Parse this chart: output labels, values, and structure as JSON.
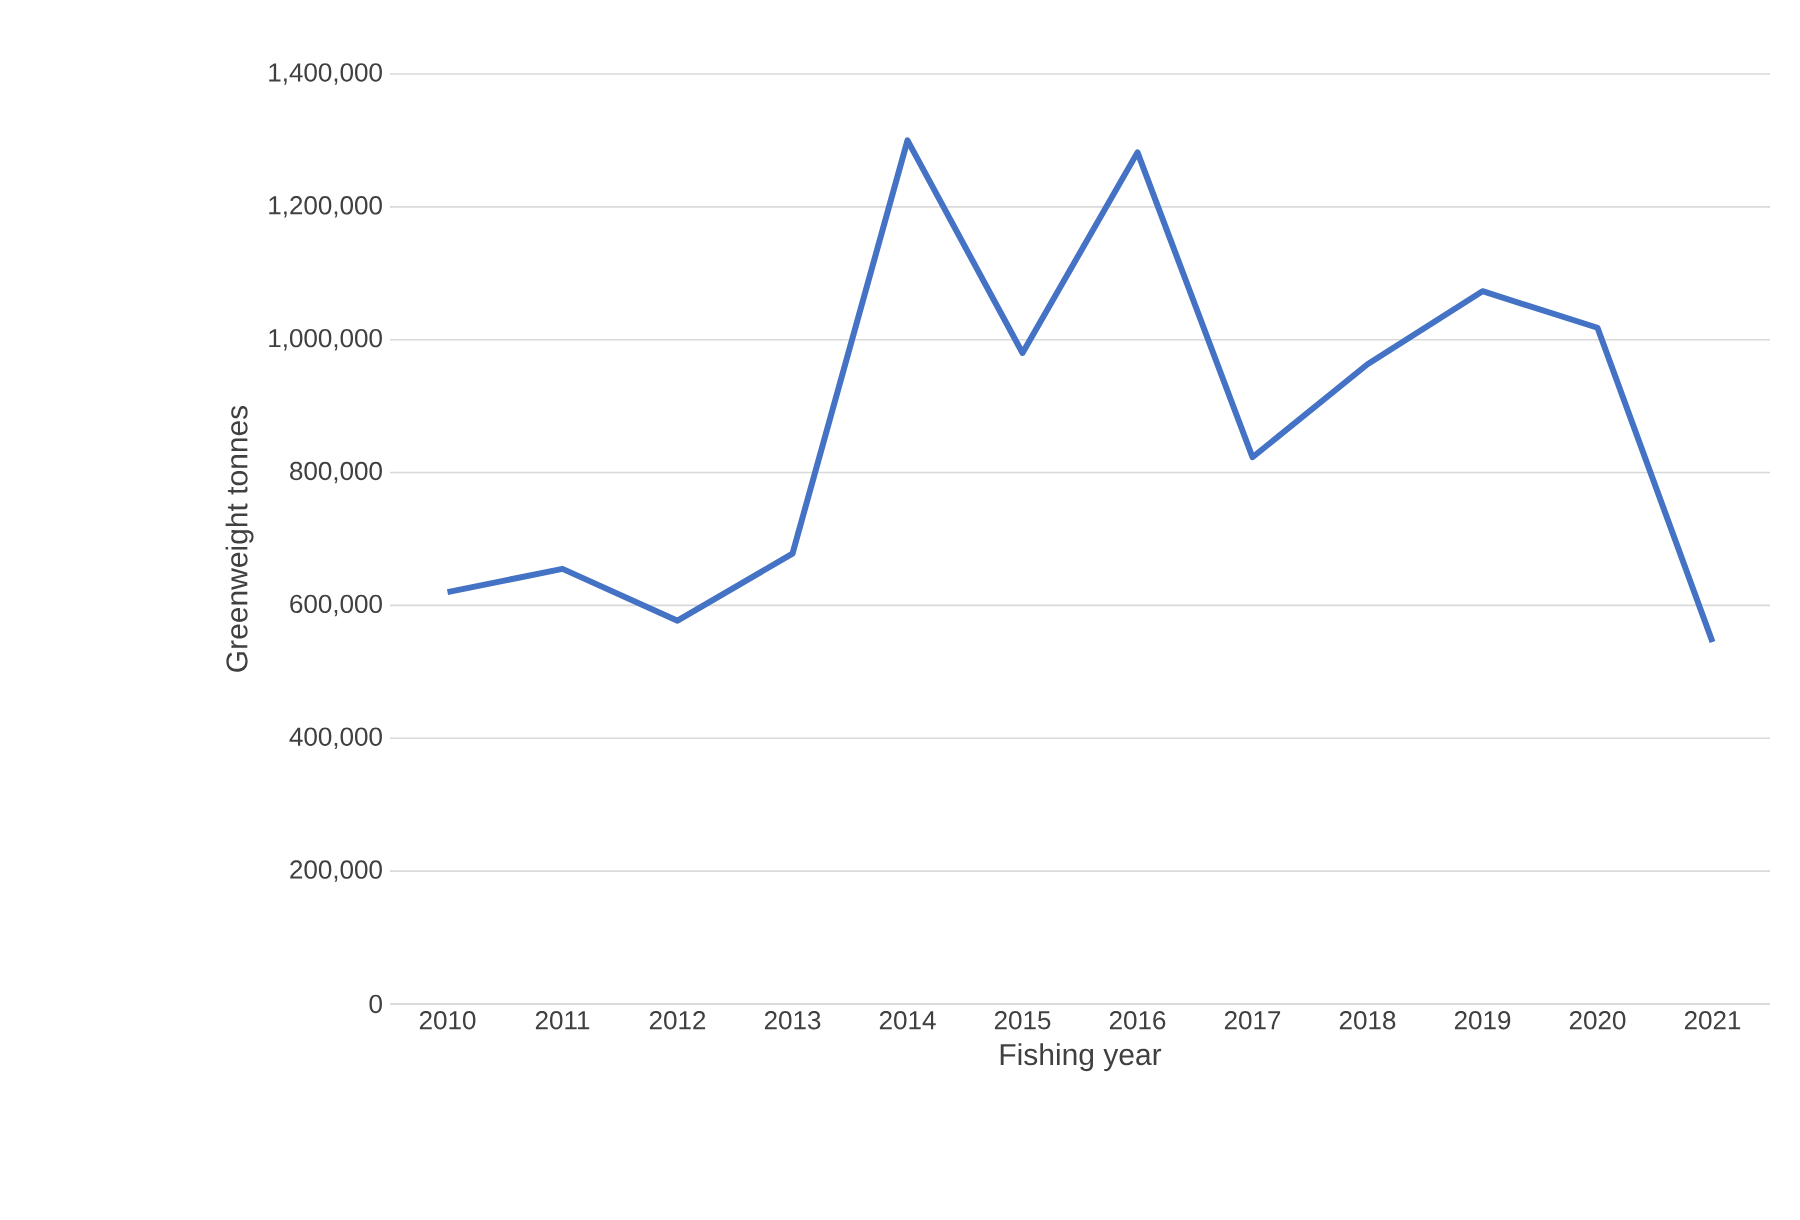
{
  "chart_data": {
    "type": "line",
    "xlabel": "Fishing year",
    "ylabel": "Greenweight tonnes",
    "categories": [
      "2010",
      "2011",
      "2012",
      "2013",
      "2014",
      "2015",
      "2016",
      "2017",
      "2018",
      "2019",
      "2020",
      "2021"
    ],
    "series": [
      {
        "color": "#4472c4",
        "values": [
          620000,
          655000,
          577000,
          678000,
          1300000,
          980000,
          1282000,
          823000,
          963000,
          1073000,
          1018000,
          545000
        ]
      }
    ],
    "ylim": [
      0,
      1400000
    ],
    "yticks": [
      {
        "value": 0,
        "label": "0"
      },
      {
        "value": 200000,
        "label": "200,000"
      },
      {
        "value": 400000,
        "label": "400,000"
      },
      {
        "value": 600000,
        "label": "600,000"
      },
      {
        "value": 800000,
        "label": "800,000"
      },
      {
        "value": 1000000,
        "label": "1,000,000"
      },
      {
        "value": 1200000,
        "label": "1,200,000"
      },
      {
        "value": 1400000,
        "label": "1,400,000"
      }
    ],
    "grid": "y"
  }
}
